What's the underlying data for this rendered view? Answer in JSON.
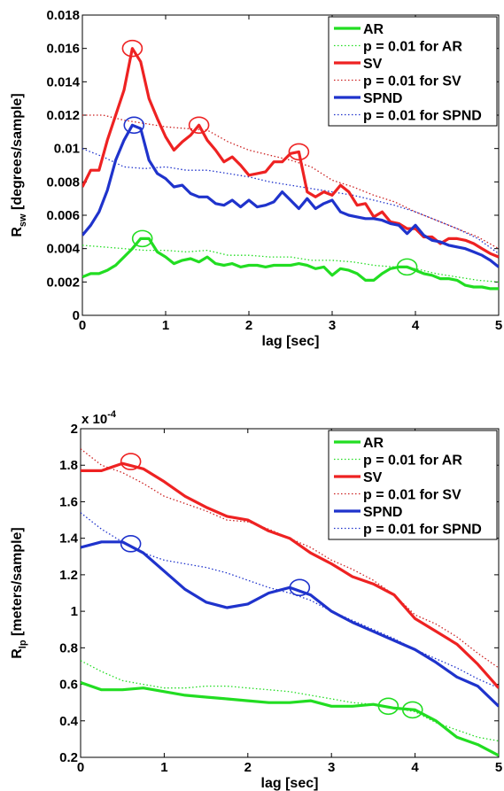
{
  "chart_data": [
    {
      "type": "line",
      "xlabel": "lag [sec]",
      "ylabel": "R",
      "ylabel_sub": "sw",
      "ylabel_unit": " [degrees/sample]",
      "exponent_label": "",
      "xlim": [
        0,
        5
      ],
      "ylim": [
        0,
        0.018
      ],
      "xticks": [
        0,
        1,
        2,
        3,
        4,
        5
      ],
      "xtick_labels": [
        "0",
        "1",
        "2",
        "3",
        "4",
        "5"
      ],
      "yticks": [
        0,
        0.002,
        0.004,
        0.006,
        0.008,
        0.01,
        0.012,
        0.014,
        0.016,
        0.018
      ],
      "ytick_labels": [
        "0",
        "0.002",
        "0.004",
        "0.006",
        "0.008",
        "0.01",
        "0.012",
        "0.014",
        "0.016",
        "0.018"
      ],
      "grid": false,
      "legend_position": "top-right",
      "series": [
        {
          "name": "AR",
          "color": "#22dd22",
          "style": "solid",
          "x": [
            0,
            0.1,
            0.2,
            0.3,
            0.4,
            0.5,
            0.6,
            0.7,
            0.8,
            0.9,
            1.0,
            1.1,
            1.2,
            1.3,
            1.4,
            1.5,
            1.6,
            1.7,
            1.8,
            1.9,
            2.0,
            2.1,
            2.2,
            2.3,
            2.4,
            2.5,
            2.6,
            2.7,
            2.8,
            2.9,
            3.0,
            3.1,
            3.2,
            3.3,
            3.4,
            3.5,
            3.6,
            3.7,
            3.8,
            3.9,
            4.0,
            4.1,
            4.2,
            4.3,
            4.4,
            4.5,
            4.6,
            4.7,
            4.8,
            4.9,
            5.0
          ],
          "y": [
            0.0023,
            0.0025,
            0.0025,
            0.0027,
            0.003,
            0.0035,
            0.004,
            0.0046,
            0.0046,
            0.0038,
            0.0035,
            0.0031,
            0.0033,
            0.0034,
            0.0032,
            0.0035,
            0.0031,
            0.003,
            0.0031,
            0.0029,
            0.003,
            0.003,
            0.0029,
            0.003,
            0.003,
            0.003,
            0.0031,
            0.003,
            0.0028,
            0.0029,
            0.0024,
            0.0028,
            0.0027,
            0.0025,
            0.0021,
            0.0021,
            0.0025,
            0.0028,
            0.0029,
            0.0029,
            0.0027,
            0.0025,
            0.0024,
            0.0022,
            0.0022,
            0.0021,
            0.0018,
            0.0017,
            0.0017,
            0.0016,
            0.0016
          ]
        },
        {
          "name": "p = 0.01 for AR",
          "color": "#22dd22",
          "style": "dotted",
          "x": [
            0,
            0.25,
            0.5,
            0.75,
            1.0,
            1.25,
            1.5,
            1.75,
            2.0,
            2.25,
            2.5,
            2.75,
            3.0,
            3.25,
            3.5,
            3.75,
            4.0,
            4.25,
            4.5,
            4.75,
            5.0
          ],
          "y": [
            0.0042,
            0.0041,
            0.004,
            0.0039,
            0.0039,
            0.0038,
            0.0039,
            0.0036,
            0.0036,
            0.0035,
            0.0035,
            0.0033,
            0.0033,
            0.0032,
            0.003,
            0.0029,
            0.0028,
            0.0025,
            0.0023,
            0.0021,
            0.002
          ]
        },
        {
          "name": "SV",
          "color": "#ee2222",
          "style": "solid",
          "x": [
            0,
            0.1,
            0.2,
            0.3,
            0.4,
            0.5,
            0.6,
            0.7,
            0.8,
            0.9,
            1.0,
            1.1,
            1.2,
            1.3,
            1.4,
            1.5,
            1.6,
            1.7,
            1.8,
            1.9,
            2.0,
            2.1,
            2.2,
            2.3,
            2.4,
            2.5,
            2.6,
            2.7,
            2.8,
            2.9,
            3.0,
            3.1,
            3.2,
            3.3,
            3.4,
            3.5,
            3.6,
            3.7,
            3.8,
            3.9,
            4.0,
            4.1,
            4.2,
            4.3,
            4.4,
            4.5,
            4.6,
            4.7,
            4.8,
            4.9,
            5.0
          ],
          "y": [
            0.0077,
            0.0087,
            0.0087,
            0.0105,
            0.012,
            0.0135,
            0.016,
            0.0152,
            0.013,
            0.0118,
            0.0107,
            0.0099,
            0.0104,
            0.0108,
            0.0114,
            0.0105,
            0.0099,
            0.0092,
            0.0095,
            0.009,
            0.0084,
            0.0085,
            0.0086,
            0.0092,
            0.0092,
            0.0097,
            0.0098,
            0.0074,
            0.0071,
            0.0074,
            0.0072,
            0.0078,
            0.0074,
            0.0066,
            0.0067,
            0.0059,
            0.0062,
            0.0056,
            0.0055,
            0.0052,
            0.0052,
            0.0047,
            0.0047,
            0.0043,
            0.0046,
            0.0046,
            0.0045,
            0.0043,
            0.004,
            0.0037,
            0.0035
          ]
        },
        {
          "name": "p = 0.01 for SV",
          "color": "#cc2222",
          "style": "dotted",
          "x": [
            0,
            0.25,
            0.5,
            0.75,
            1.0,
            1.25,
            1.5,
            1.75,
            2.0,
            2.25,
            2.5,
            2.75,
            3.0,
            3.25,
            3.5,
            3.75,
            4.0,
            4.25,
            4.5,
            4.75,
            5.0
          ],
          "y": [
            0.012,
            0.012,
            0.0117,
            0.0115,
            0.0113,
            0.0112,
            0.0111,
            0.0104,
            0.0099,
            0.0096,
            0.0093,
            0.0089,
            0.0081,
            0.0077,
            0.0072,
            0.0068,
            0.0062,
            0.0057,
            0.0052,
            0.0047,
            0.004
          ]
        },
        {
          "name": "SPND",
          "color": "#1f33cc",
          "style": "solid",
          "x": [
            0,
            0.1,
            0.2,
            0.3,
            0.4,
            0.5,
            0.6,
            0.7,
            0.8,
            0.9,
            1.0,
            1.1,
            1.2,
            1.3,
            1.4,
            1.5,
            1.6,
            1.7,
            1.8,
            1.9,
            2.0,
            2.1,
            2.2,
            2.3,
            2.4,
            2.5,
            2.6,
            2.7,
            2.8,
            2.9,
            3.0,
            3.1,
            3.2,
            3.3,
            3.4,
            3.5,
            3.6,
            3.7,
            3.8,
            3.9,
            4.0,
            4.1,
            4.2,
            4.3,
            4.4,
            4.5,
            4.6,
            4.7,
            4.8,
            4.9,
            5.0
          ],
          "y": [
            0.0048,
            0.0054,
            0.0062,
            0.0075,
            0.0093,
            0.0105,
            0.0114,
            0.0112,
            0.0093,
            0.0085,
            0.0082,
            0.0077,
            0.0078,
            0.0073,
            0.0071,
            0.0071,
            0.0067,
            0.0066,
            0.0069,
            0.0065,
            0.0069,
            0.0065,
            0.0066,
            0.0068,
            0.0074,
            0.0069,
            0.0064,
            0.007,
            0.0064,
            0.0067,
            0.0069,
            0.0062,
            0.006,
            0.0059,
            0.0058,
            0.0058,
            0.0057,
            0.0055,
            0.0054,
            0.0049,
            0.0054,
            0.0048,
            0.0045,
            0.0044,
            0.0042,
            0.0041,
            0.004,
            0.0038,
            0.0036,
            0.0033,
            0.0029
          ]
        },
        {
          "name": "p = 0.01 for SPND",
          "color": "#1f33cc",
          "style": "dotted",
          "x": [
            0,
            0.25,
            0.5,
            0.75,
            1.0,
            1.25,
            1.5,
            1.75,
            2.0,
            2.25,
            2.5,
            2.75,
            3.0,
            3.25,
            3.5,
            3.75,
            4.0,
            4.25,
            4.5,
            4.75,
            5.0
          ],
          "y": [
            0.01,
            0.0095,
            0.0089,
            0.0088,
            0.0089,
            0.0087,
            0.0087,
            0.0085,
            0.0083,
            0.008,
            0.0078,
            0.0076,
            0.0074,
            0.0072,
            0.0069,
            0.0066,
            0.0062,
            0.0057,
            0.0052,
            0.0046,
            0.0037
          ]
        }
      ],
      "circles": [
        {
          "x": 0.6,
          "y": 0.016,
          "color": "#ee2222"
        },
        {
          "x": 1.4,
          "y": 0.0114,
          "color": "#ee2222"
        },
        {
          "x": 2.6,
          "y": 0.0098,
          "color": "#ee2222"
        },
        {
          "x": 0.62,
          "y": 0.0114,
          "color": "#1f33cc"
        },
        {
          "x": 0.72,
          "y": 0.0046,
          "color": "#22dd22"
        },
        {
          "x": 3.9,
          "y": 0.0029,
          "color": "#22dd22"
        }
      ]
    },
    {
      "type": "line",
      "xlabel": "lag [sec]",
      "ylabel": "R",
      "ylabel_sub": "lp",
      "ylabel_unit": " [meters/sample]",
      "exponent_label": "x 10",
      "exponent_power": "-4",
      "xlim": [
        0,
        5
      ],
      "ylim": [
        0.2,
        2
      ],
      "xticks": [
        0,
        1,
        2,
        3,
        4,
        5
      ],
      "xtick_labels": [
        "0",
        "1",
        "2",
        "3",
        "4",
        "5"
      ],
      "yticks": [
        0.2,
        0.4,
        0.6,
        0.8,
        1.0,
        1.2,
        1.4,
        1.6,
        1.8,
        2.0
      ],
      "ytick_labels": [
        "0.2",
        "0.4",
        "0.6",
        "0.8",
        "1",
        "1.2",
        "1.4",
        "1.6",
        "1.8",
        "2"
      ],
      "grid": false,
      "legend_position": "top-right",
      "series": [
        {
          "name": "AR",
          "color": "#22dd22",
          "style": "solid",
          "x": [
            0,
            0.25,
            0.5,
            0.75,
            1.0,
            1.25,
            1.5,
            1.75,
            2.0,
            2.25,
            2.5,
            2.75,
            3.0,
            3.25,
            3.5,
            3.75,
            4.0,
            4.25,
            4.5,
            4.75,
            5.0
          ],
          "y": [
            0.61,
            0.57,
            0.57,
            0.58,
            0.56,
            0.54,
            0.53,
            0.52,
            0.51,
            0.5,
            0.5,
            0.51,
            0.48,
            0.48,
            0.49,
            0.47,
            0.46,
            0.4,
            0.31,
            0.27,
            0.21
          ]
        },
        {
          "name": "p = 0.01 for AR",
          "color": "#22dd22",
          "style": "dotted",
          "x": [
            0,
            0.25,
            0.5,
            0.75,
            1.0,
            1.25,
            1.5,
            1.75,
            2.0,
            2.25,
            2.5,
            2.75,
            3.0,
            3.25,
            3.5,
            3.75,
            4.0,
            4.25,
            4.5,
            4.75,
            5.0
          ],
          "y": [
            0.73,
            0.67,
            0.62,
            0.6,
            0.58,
            0.58,
            0.59,
            0.59,
            0.58,
            0.57,
            0.56,
            0.54,
            0.52,
            0.5,
            0.49,
            0.47,
            0.45,
            0.39,
            0.35,
            0.31,
            0.29
          ]
        },
        {
          "name": "SV",
          "color": "#ee2222",
          "style": "solid",
          "x": [
            0,
            0.25,
            0.5,
            0.75,
            1.0,
            1.25,
            1.5,
            1.75,
            2.0,
            2.25,
            2.5,
            2.75,
            3.0,
            3.25,
            3.5,
            3.75,
            4.0,
            4.25,
            4.5,
            4.75,
            5.0
          ],
          "y": [
            1.77,
            1.77,
            1.81,
            1.78,
            1.71,
            1.63,
            1.57,
            1.52,
            1.5,
            1.44,
            1.4,
            1.32,
            1.26,
            1.19,
            1.15,
            1.09,
            0.96,
            0.89,
            0.82,
            0.71,
            0.58
          ]
        },
        {
          "name": "p = 0.01 for SV",
          "color": "#cc2222",
          "style": "dotted",
          "x": [
            0,
            0.25,
            0.5,
            0.75,
            1.0,
            1.25,
            1.5,
            1.75,
            2.0,
            2.25,
            2.5,
            2.75,
            3.0,
            3.25,
            3.5,
            3.75,
            4.0,
            4.25,
            4.5,
            4.75,
            5.0
          ],
          "y": [
            1.89,
            1.8,
            1.76,
            1.7,
            1.63,
            1.59,
            1.55,
            1.5,
            1.49,
            1.45,
            1.4,
            1.35,
            1.28,
            1.23,
            1.17,
            1.09,
            0.98,
            0.93,
            0.86,
            0.77,
            0.69
          ]
        },
        {
          "name": "SPND",
          "color": "#1f33cc",
          "style": "solid",
          "x": [
            0,
            0.25,
            0.5,
            0.75,
            1.0,
            1.25,
            1.5,
            1.75,
            2.0,
            2.25,
            2.5,
            2.75,
            3.0,
            3.25,
            3.5,
            3.75,
            4.0,
            4.25,
            4.5,
            4.75,
            5.0
          ],
          "y": [
            1.35,
            1.38,
            1.38,
            1.32,
            1.22,
            1.12,
            1.05,
            1.02,
            1.04,
            1.1,
            1.13,
            1.09,
            1.0,
            0.94,
            0.89,
            0.84,
            0.79,
            0.72,
            0.64,
            0.59,
            0.48
          ]
        },
        {
          "name": "p = 0.01 for SPND",
          "color": "#1f33cc",
          "style": "dotted",
          "x": [
            0,
            0.25,
            0.5,
            0.75,
            1.0,
            1.25,
            1.5,
            1.75,
            2.0,
            2.25,
            2.5,
            2.75,
            3.0,
            3.25,
            3.5,
            3.75,
            4.0,
            4.25,
            4.5,
            4.75,
            5.0
          ],
          "y": [
            1.54,
            1.45,
            1.38,
            1.32,
            1.28,
            1.26,
            1.24,
            1.21,
            1.17,
            1.13,
            1.1,
            1.06,
            1.0,
            0.95,
            0.9,
            0.85,
            0.79,
            0.74,
            0.69,
            0.63,
            0.58
          ]
        }
      ],
      "circles": [
        {
          "x": 0.6,
          "y": 1.82,
          "color": "#ee2222"
        },
        {
          "x": 0.6,
          "y": 1.37,
          "color": "#1f33cc"
        },
        {
          "x": 2.62,
          "y": 1.13,
          "color": "#1f33cc"
        },
        {
          "x": 3.68,
          "y": 0.48,
          "color": "#22dd22"
        },
        {
          "x": 3.97,
          "y": 0.46,
          "color": "#22dd22"
        }
      ]
    }
  ]
}
